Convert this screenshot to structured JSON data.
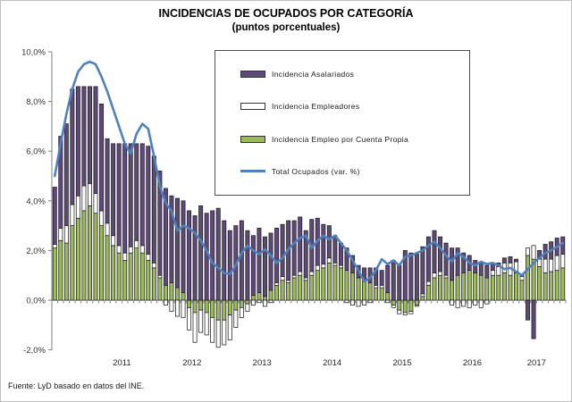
{
  "title": "INCIDENCIAS DE OCUPADOS POR CATEGORÍA",
  "subtitle": "(puntos porcentuales)",
  "source": "Fuente: LyD basado en datos del INE.",
  "colors": {
    "asalariados": "#5F497A",
    "empleadores": "#FFFFFF",
    "cuenta_propia": "#9BBB59",
    "total_line": "#4F81BD",
    "axis": "#808080",
    "bar_border": "#1f1f1f"
  },
  "chart_data": {
    "type": "bar",
    "subtype": "stacked-bars-with-line",
    "title": "INCIDENCIAS DE OCUPADOS POR CATEGORÍA (puntos porcentuales)",
    "legend_position": "top-center-box",
    "grid": false,
    "y_axis": {
      "min": -2,
      "max": 10,
      "tick_step": 2,
      "tick_values": [
        10,
        8,
        6,
        4,
        2,
        0,
        -2
      ],
      "tick_labels": [
        "10,0%",
        "8,0%",
        "6,0%",
        "4,0%",
        "2,0%",
        "0,0%",
        "-2,0%"
      ]
    },
    "x_axis": {
      "year_labels": [
        "2011",
        "2012",
        "2013",
        "2014",
        "2015",
        "2016",
        "2017"
      ]
    },
    "months": [
      "2010-07",
      "2010-08",
      "2010-09",
      "2010-10",
      "2010-11",
      "2010-12",
      "2011-01",
      "2011-02",
      "2011-03",
      "2011-04",
      "2011-05",
      "2011-06",
      "2011-07",
      "2011-08",
      "2011-09",
      "2011-10",
      "2011-11",
      "2011-12",
      "2012-01",
      "2012-02",
      "2012-03",
      "2012-04",
      "2012-05",
      "2012-06",
      "2012-07",
      "2012-08",
      "2012-09",
      "2012-10",
      "2012-11",
      "2012-12",
      "2013-01",
      "2013-02",
      "2013-03",
      "2013-04",
      "2013-05",
      "2013-06",
      "2013-07",
      "2013-08",
      "2013-09",
      "2013-10",
      "2013-11",
      "2013-12",
      "2014-01",
      "2014-02",
      "2014-03",
      "2014-04",
      "2014-05",
      "2014-06",
      "2014-07",
      "2014-08",
      "2014-09",
      "2014-10",
      "2014-11",
      "2014-12",
      "2015-01",
      "2015-02",
      "2015-03",
      "2015-04",
      "2015-05",
      "2015-06",
      "2015-07",
      "2015-08",
      "2015-09",
      "2015-10",
      "2015-11",
      "2015-12",
      "2016-01",
      "2016-02",
      "2016-03",
      "2016-04",
      "2016-05",
      "2016-06",
      "2016-07",
      "2016-08",
      "2016-09",
      "2016-10",
      "2016-11",
      "2016-12",
      "2017-01",
      "2017-02",
      "2017-03",
      "2017-04",
      "2017-05",
      "2017-06",
      "2017-07",
      "2017-08",
      "2017-09",
      "2017-10"
    ],
    "series": [
      {
        "name": "Incidencia Asalariados",
        "type": "bar",
        "color": "#5F497A",
        "stack_index": 2,
        "values": [
          2.3,
          3.7,
          4.1,
          4.65,
          4.4,
          4.0,
          3.9,
          4.3,
          4.3,
          3.4,
          3.7,
          4.1,
          4.4,
          4.15,
          3.9,
          4.1,
          4.35,
          4.3,
          4.2,
          3.9,
          3.5,
          3.6,
          3.7,
          3.6,
          3.4,
          3.8,
          3.5,
          3.6,
          3.7,
          3.2,
          2.8,
          3.0,
          3.2,
          2.8,
          2.4,
          2.6,
          2.4,
          2.3,
          2.2,
          2.1,
          2.4,
          2.2,
          2.2,
          1.9,
          2.1,
          1.9,
          1.6,
          1.3,
          1.1,
          0.9,
          0.9,
          0.7,
          0.5,
          0.5,
          0.6,
          0.7,
          0.6,
          1.1,
          1.6,
          1.4,
          2.0,
          1.9,
          1.85,
          1.9,
          1.8,
          1.7,
          1.4,
          1.3,
          1.3,
          1.1,
          0.8,
          0.6,
          0.5,
          0.55,
          0.5,
          0.3,
          0.15,
          0.2,
          0.25,
          0.1,
          0.1,
          -0.8,
          -1.55,
          0.35,
          0.6,
          0.7,
          0.7,
          0.7
        ]
      },
      {
        "name": "Incidencia Empleadores",
        "type": "bar",
        "color": "#FFFFFF",
        "stack_index": 1,
        "values": [
          0.15,
          0.5,
          0.7,
          0.85,
          0.9,
          1.0,
          0.9,
          0.8,
          0.6,
          0.5,
          0.4,
          0.3,
          0.3,
          0.25,
          0.3,
          0.3,
          0.25,
          0.2,
          0.1,
          -0.2,
          -0.45,
          -0.65,
          -0.7,
          -0.9,
          -1.2,
          -0.9,
          -0.9,
          -1.0,
          -1.1,
          -1.0,
          -1.0,
          -0.7,
          -0.4,
          -0.3,
          -0.2,
          -0.1,
          -0.25,
          -0.1,
          0.1,
          0.15,
          0.1,
          0.1,
          0.15,
          0.1,
          0.15,
          0.2,
          0.15,
          0.2,
          0.1,
          0.1,
          -0.1,
          -0.2,
          -0.25,
          -0.2,
          -0.1,
          0.1,
          0.1,
          -0.1,
          -0.1,
          -0.15,
          -0.1,
          -0.1,
          -0.05,
          0.1,
          0.15,
          0.2,
          0.15,
          0.1,
          -0.2,
          -0.3,
          -0.25,
          -0.3,
          -0.2,
          -0.3,
          -0.15,
          0.2,
          0.35,
          0.4,
          0.5,
          0.45,
          0.15,
          0.3,
          0.55,
          0.3,
          0.55,
          0.5,
          0.6,
          0.55
        ]
      },
      {
        "name": "Incidencia Empleo por Cuenta Propia",
        "type": "bar",
        "color": "#9BBB59",
        "stack_index": 0,
        "values": [
          2.1,
          2.4,
          2.3,
          3.0,
          3.3,
          3.6,
          3.8,
          3.5,
          3.0,
          2.6,
          2.2,
          1.9,
          1.6,
          1.9,
          2.1,
          1.9,
          1.6,
          1.3,
          0.9,
          0.6,
          0.7,
          0.5,
          0.3,
          -0.3,
          -0.5,
          -0.4,
          -0.5,
          -0.7,
          -0.8,
          -0.8,
          -0.6,
          -0.4,
          -0.3,
          -0.15,
          0.2,
          0.3,
          0.15,
          0.4,
          0.6,
          0.8,
          0.7,
          0.9,
          1.0,
          0.8,
          1.0,
          1.2,
          1.3,
          1.5,
          1.4,
          1.3,
          1.2,
          1.1,
          0.9,
          0.8,
          0.7,
          0.5,
          0.5,
          0.3,
          -0.2,
          -0.4,
          -0.5,
          -0.45,
          -0.2,
          0.15,
          0.6,
          0.9,
          1.0,
          0.9,
          0.8,
          1.0,
          1.1,
          1.2,
          1.1,
          1.0,
          0.9,
          1.0,
          1.0,
          1.1,
          1.0,
          1.1,
          0.8,
          1.8,
          1.65,
          1.35,
          1.1,
          1.15,
          1.2,
          1.3
        ]
      },
      {
        "name": "Total Ocupados (var. %)",
        "type": "line",
        "color": "#4F81BD",
        "values": [
          5.0,
          6.3,
          7.5,
          8.5,
          9.2,
          9.5,
          9.6,
          9.5,
          9.0,
          8.4,
          7.7,
          7.0,
          6.3,
          5.9,
          6.7,
          7.1,
          6.9,
          5.8,
          4.6,
          3.9,
          3.6,
          2.8,
          3.0,
          2.9,
          2.7,
          2.4,
          2.0,
          1.5,
          1.3,
          1.1,
          1.05,
          1.4,
          1.9,
          2.2,
          2.0,
          1.85,
          2.05,
          1.8,
          1.5,
          1.7,
          2.05,
          2.3,
          2.5,
          2.6,
          2.1,
          2.4,
          2.6,
          2.45,
          2.6,
          2.3,
          2.0,
          1.6,
          1.2,
          0.75,
          0.9,
          1.2,
          1.65,
          1.45,
          1.6,
          1.4,
          1.75,
          1.8,
          1.9,
          2.0,
          2.2,
          2.35,
          2.1,
          1.8,
          1.55,
          1.9,
          1.75,
          1.5,
          1.4,
          1.55,
          1.45,
          1.5,
          1.4,
          1.25,
          1.3,
          1.15,
          1.0,
          1.25,
          1.5,
          1.7,
          1.9,
          2.0,
          2.15,
          2.3
        ]
      }
    ]
  }
}
